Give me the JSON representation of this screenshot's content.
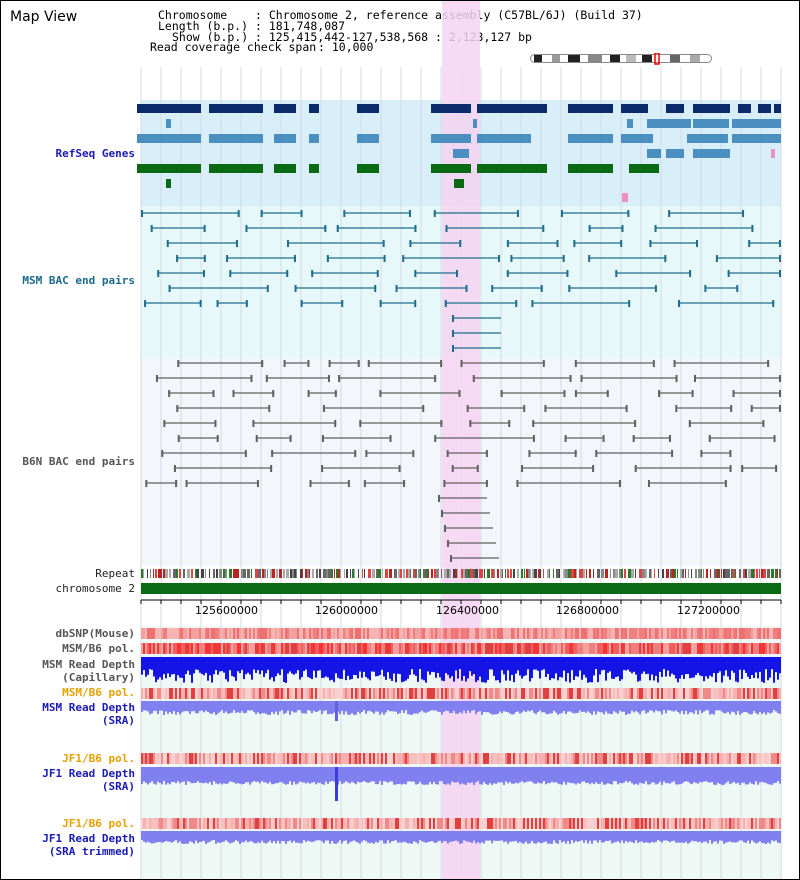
{
  "view_title": "Map View",
  "header": {
    "chromosome_key": "Chromosome",
    "chromosome_val": ": Chromosome 2, reference assembly (C57BL/6J) (Build 37)",
    "length_key": "Length (b.p.)",
    "length_val": ": 181,748,087",
    "show_key": "Show (b.p.)",
    "show_val": ": 125,415,442-127,538,568 : 2,123,127 bp",
    "coverage_key": "Read coverage check span",
    "coverage_val": ": 10,000"
  },
  "tracks": {
    "refseq": "RefSeq Genes",
    "msm_bac": "MSM BAC end pairs",
    "b6n_bac": "B6N BAC end pairs",
    "repeat": "Repeat",
    "chromosome": "chromosome 2",
    "dbsnp": "dbSNP(Mouse)",
    "msm_b6_pol_1": "MSM/B6 pol.",
    "msm_read_depth_cap_1": "MSM Read Depth",
    "msm_read_depth_cap_2": "(Capillary)",
    "msm_b6_pol_2": "MSM/B6 pol.",
    "msm_read_depth_sra_1": "MSM Read Depth",
    "msm_read_depth_sra_2": "(SRA)",
    "jf1_b6_pol_1": "JF1/B6 pol.",
    "jf1_read_depth_sra_1": "JF1 Read Depth",
    "jf1_read_depth_sra_2": "(SRA)",
    "jf1_b6_pol_2": "JF1/B6 pol.",
    "jf1_read_depth_trim_1": "JF1 Read Depth",
    "jf1_read_depth_trim_2": "(SRA trimmed)"
  },
  "axis_ticks": [
    "125600000",
    "126000000",
    "126400000",
    "126800000",
    "127200000"
  ],
  "colors": {
    "refseq_bg": "#d8eef9",
    "msm_bg": "#e6f8fa",
    "b6n_bg": "#f3f6fb",
    "highlight": "#f6d3f1",
    "refseq_dark": "#0b2b6a",
    "refseq_mid": "#4a8fbf",
    "refseq_green": "#0a6a14",
    "msm_line": "#1f6d8c",
    "b6n_line": "#606060",
    "chrom_green": "#0b6b14",
    "snp": "#f08080",
    "depth_blue": "#1414e6",
    "depth_light": "#8080f0"
  }
}
